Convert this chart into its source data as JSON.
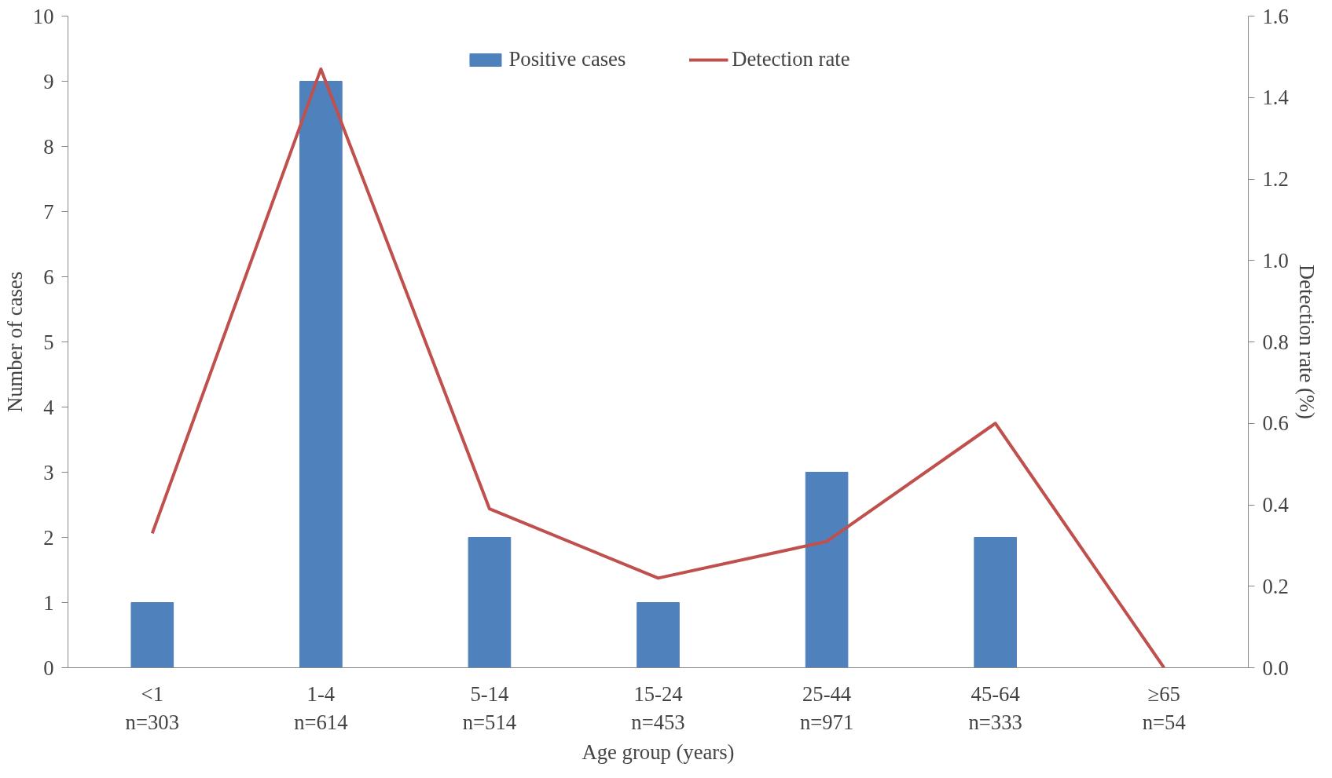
{
  "chart_data": {
    "type": "bar",
    "xlabel": "Age group (years)",
    "ylabel": "Number of cases",
    "y2label": "Detection rate (%)",
    "categories": [
      "<1\nn=303",
      "1-4\nn=614",
      "5-14\nn=514",
      "15-24\nn=453",
      "25-44\nn=971",
      "45-64\nn=333",
      "≥65\nn=54"
    ],
    "series": [
      {
        "name": "Positive cases",
        "color": "#4f81bd",
        "values": [
          1,
          9,
          2,
          1,
          3,
          2,
          0
        ]
      },
      {
        "name": "Detection rate",
        "type": "line",
        "axis": "y2",
        "color": "#c0504d",
        "values": [
          0.33,
          1.47,
          0.39,
          0.22,
          0.31,
          0.6,
          0.0
        ]
      }
    ],
    "ylim": [
      0,
      10
    ],
    "yticks": [
      0,
      1,
      2,
      3,
      4,
      5,
      6,
      7,
      8,
      9,
      10
    ],
    "y2lim": [
      0,
      1.6
    ],
    "y2ticks": [
      {
        "value": 0,
        "label": "0.0"
      },
      {
        "value": 0.2,
        "label": "0.2"
      },
      {
        "value": 0.4,
        "label": "0.4"
      },
      {
        "value": 0.6,
        "label": "0.6"
      },
      {
        "value": 0.8,
        "label": "0.8"
      },
      {
        "value": 1.0,
        "label": "1.0"
      },
      {
        "value": 1.2,
        "label": "1.2"
      },
      {
        "value": 1.4,
        "label": "1.4"
      },
      {
        "value": 1.6,
        "label": "1.6"
      }
    ],
    "grid": false,
    "legend": "top",
    "marker": "none",
    "line_style": "solid"
  }
}
